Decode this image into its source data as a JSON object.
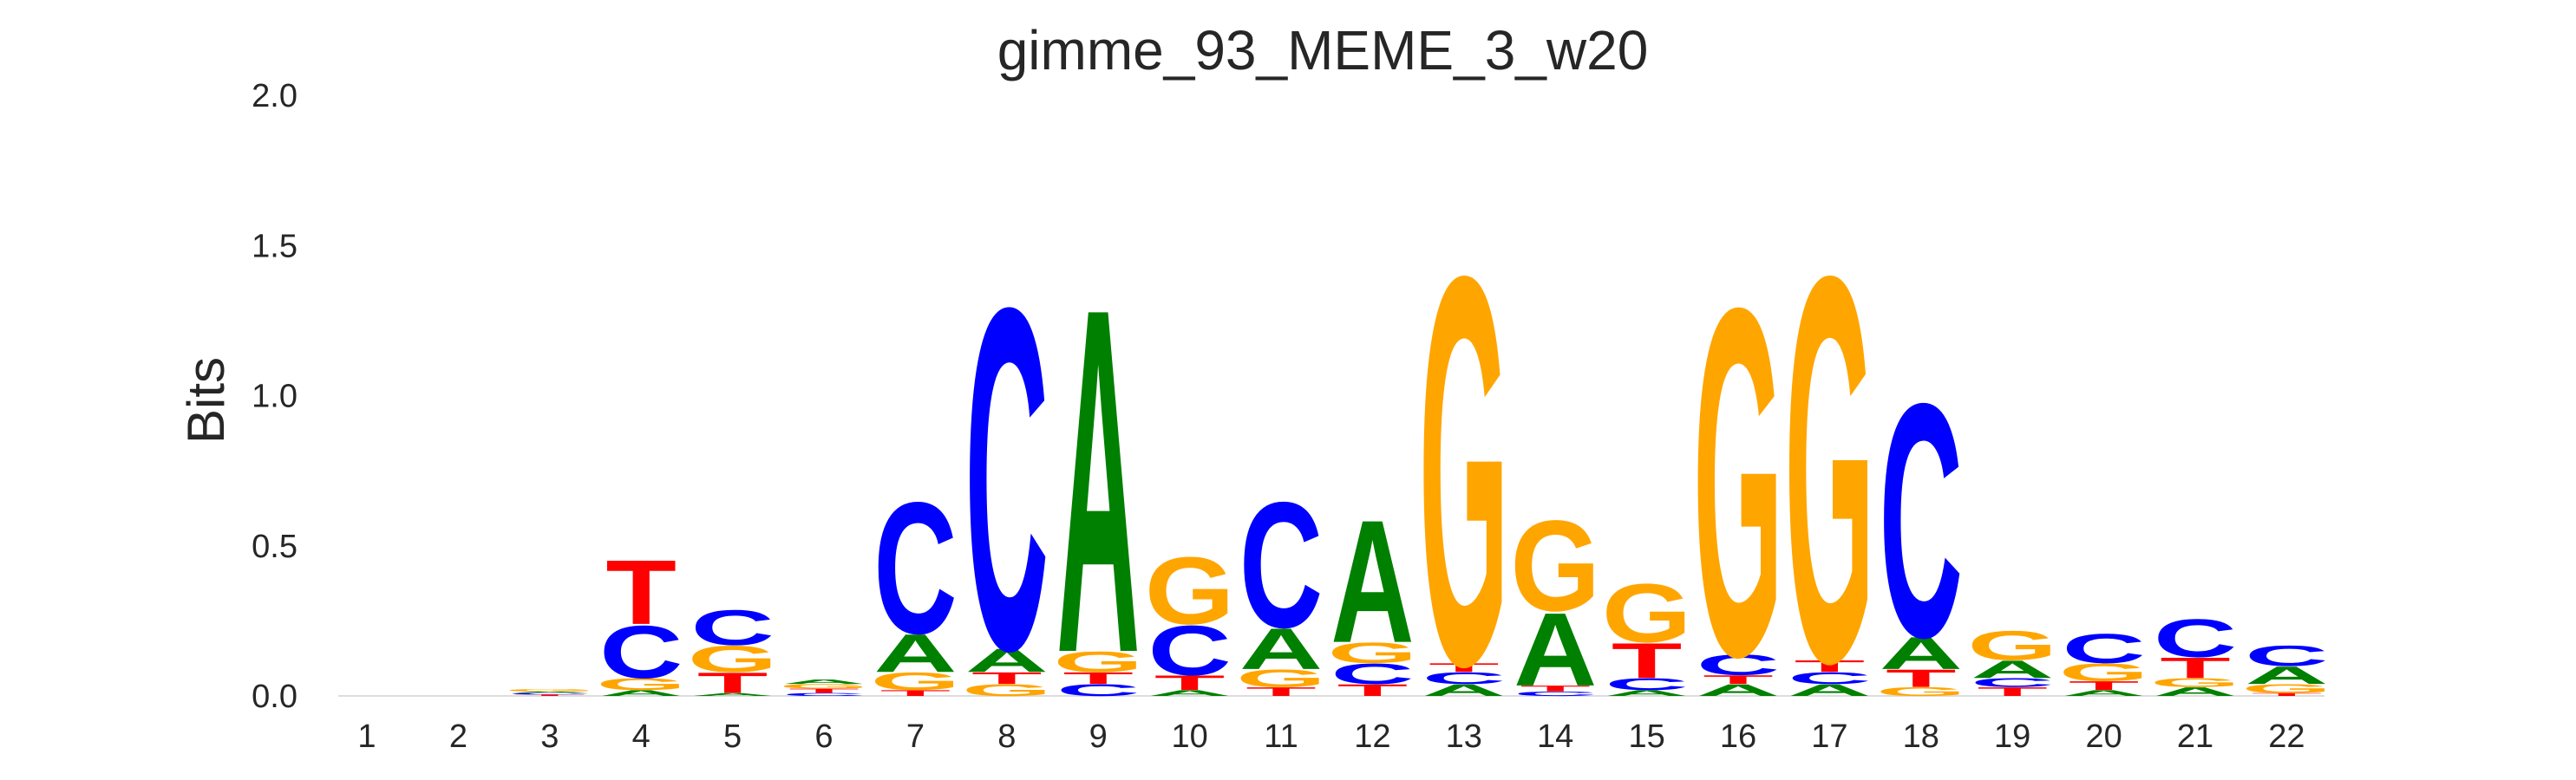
{
  "chart_data": {
    "type": "sequence-logo",
    "title": "gimme_93_MEME_3_w20",
    "ylabel": "Bits",
    "ylim": [
      0,
      2
    ],
    "yticks": [
      "0.0",
      "0.5",
      "1.0",
      "1.5",
      "2.0"
    ],
    "positions": [
      "1",
      "2",
      "3",
      "4",
      "5",
      "6",
      "7",
      "8",
      "9",
      "10",
      "11",
      "12",
      "13",
      "14",
      "15",
      "16",
      "17",
      "18",
      "19",
      "20",
      "21",
      "22"
    ],
    "colors": {
      "A": "#008000",
      "C": "#0000ff",
      "G": "#ffa500",
      "T": "#ff0000"
    },
    "columns": [
      [],
      [],
      [
        [
          "T",
          0.005
        ],
        [
          "C",
          0.005
        ],
        [
          "A",
          0.005
        ],
        [
          "G",
          0.008
        ]
      ],
      [
        [
          "A",
          0.02
        ],
        [
          "G",
          0.04
        ],
        [
          "C",
          0.18
        ],
        [
          "T",
          0.22
        ]
      ],
      [
        [
          "A",
          0.01
        ],
        [
          "T",
          0.07
        ],
        [
          "G",
          0.09
        ],
        [
          "C",
          0.12
        ]
      ],
      [
        [
          "C",
          0.01
        ],
        [
          "T",
          0.015
        ],
        [
          "G",
          0.015
        ],
        [
          "A",
          0.015
        ]
      ],
      [
        [
          "T",
          0.02
        ],
        [
          "G",
          0.06
        ],
        [
          "A",
          0.13
        ],
        [
          "C",
          0.45
        ]
      ],
      [
        [
          "G",
          0.04
        ],
        [
          "T",
          0.04
        ],
        [
          "A",
          0.08
        ],
        [
          "C",
          1.17
        ]
      ],
      [
        [
          "C",
          0.04
        ],
        [
          "T",
          0.04
        ],
        [
          "G",
          0.07
        ],
        [
          "A",
          1.18
        ]
      ],
      [
        [
          "A",
          0.02
        ],
        [
          "T",
          0.05
        ],
        [
          "C",
          0.17
        ],
        [
          "G",
          0.23
        ]
      ],
      [
        [
          "T",
          0.03
        ],
        [
          "G",
          0.06
        ],
        [
          "A",
          0.14
        ],
        [
          "C",
          0.43
        ]
      ],
      [
        [
          "T",
          0.04
        ],
        [
          "C",
          0.07
        ],
        [
          "G",
          0.07
        ],
        [
          "A",
          0.42
        ]
      ],
      [
        [
          "A",
          0.04
        ],
        [
          "C",
          0.04
        ],
        [
          "T",
          0.03
        ],
        [
          "G",
          1.33
        ]
      ],
      [
        [
          "C",
          0.015
        ],
        [
          "T",
          0.02
        ],
        [
          "A",
          0.25
        ],
        [
          "G",
          0.31
        ]
      ],
      [
        [
          "A",
          0.02
        ],
        [
          "C",
          0.04
        ],
        [
          "T",
          0.12
        ],
        [
          "G",
          0.2
        ]
      ],
      [
        [
          "A",
          0.04
        ],
        [
          "T",
          0.03
        ],
        [
          "C",
          0.07
        ],
        [
          "G",
          1.19
        ]
      ],
      [
        [
          "A",
          0.04
        ],
        [
          "C",
          0.04
        ],
        [
          "T",
          0.04
        ],
        [
          "G",
          1.32
        ]
      ],
      [
        [
          "G",
          0.03
        ],
        [
          "T",
          0.06
        ],
        [
          "A",
          0.11
        ],
        [
          "C",
          0.8
        ]
      ],
      [
        [
          "T",
          0.03
        ],
        [
          "C",
          0.03
        ],
        [
          "A",
          0.06
        ],
        [
          "G",
          0.1
        ]
      ],
      [
        [
          "A",
          0.02
        ],
        [
          "T",
          0.03
        ],
        [
          "G",
          0.06
        ],
        [
          "C",
          0.1
        ]
      ],
      [
        [
          "A",
          0.03
        ],
        [
          "G",
          0.03
        ],
        [
          "T",
          0.07
        ],
        [
          "C",
          0.13
        ]
      ],
      [
        [
          "T",
          0.01
        ],
        [
          "G",
          0.03
        ],
        [
          "A",
          0.06
        ],
        [
          "C",
          0.07
        ]
      ]
    ]
  }
}
